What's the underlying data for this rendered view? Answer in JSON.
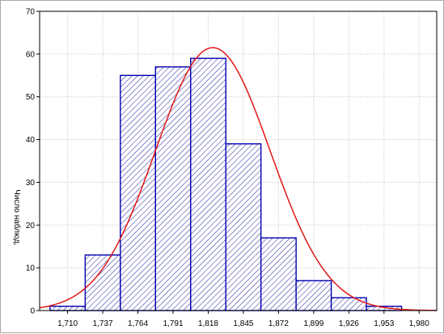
{
  "chart_data": {
    "type": "bar",
    "histogram": true,
    "title": "",
    "xlabel": "",
    "ylabel": "Число наблюд.",
    "bin_edges": [
      1.6965,
      1.7235,
      1.7505,
      1.7775,
      1.8045,
      1.8315,
      1.8585,
      1.8855,
      1.9125,
      1.9395,
      1.9665,
      1.9935
    ],
    "values": [
      1,
      13,
      55,
      57,
      59,
      39,
      17,
      7,
      3,
      1,
      0
    ],
    "x_ticks": [
      1.71,
      1.737,
      1.764,
      1.791,
      1.818,
      1.845,
      1.872,
      1.899,
      1.926,
      1.953,
      1.98
    ],
    "x_tick_labels": [
      "1,710",
      "1,737",
      "1,764",
      "1,791",
      "1,818",
      "1,845",
      "1,872",
      "1,899",
      "1,926",
      "1,953",
      "1,980"
    ],
    "xlim": [
      1.6885,
      1.9935
    ],
    "ylim": [
      0,
      70
    ],
    "y_ticks": [
      0,
      10,
      20,
      30,
      40,
      50,
      60,
      70
    ],
    "y_tick_labels": [
      "0",
      "10",
      "20",
      "30",
      "40",
      "50",
      "60",
      "70"
    ],
    "fit_curve": {
      "type": "normal",
      "mean": 1.8215,
      "sd": 0.04413,
      "n": 252,
      "bin_width": 0.027
    },
    "grid": true,
    "colors": {
      "bar_edge": "#0000b0",
      "bar_hatch": "#2020a0",
      "curve": "#e01818",
      "grid": "#c0c0c0",
      "axis": "#000000"
    }
  }
}
